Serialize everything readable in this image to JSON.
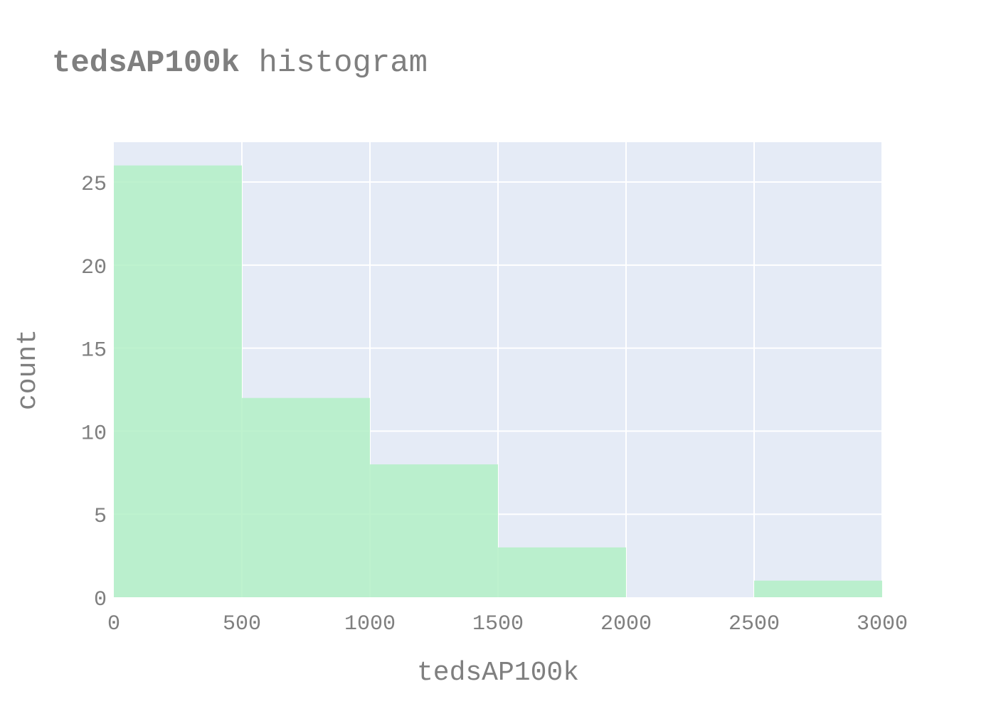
{
  "chart_data": {
    "type": "bar",
    "title_bold": "tedsAP100k",
    "title_rest": " histogram",
    "xlabel": "tedsAP100k",
    "ylabel": "count",
    "bin_edges": [
      0,
      500,
      1000,
      1500,
      2000,
      2500,
      3000
    ],
    "counts": [
      26,
      12,
      8,
      3,
      0,
      1
    ],
    "xlim": [
      0,
      3000
    ],
    "ylim": [
      0,
      27.4
    ],
    "xticks": [
      0,
      500,
      1000,
      1500,
      2000,
      2500,
      3000
    ],
    "yticks": [
      0,
      5,
      10,
      15,
      20,
      25
    ],
    "grid": true,
    "colors": {
      "bar": "#b3f0c5",
      "plot_bg": "#e5ebf6",
      "text": "#7f7f7f"
    }
  }
}
